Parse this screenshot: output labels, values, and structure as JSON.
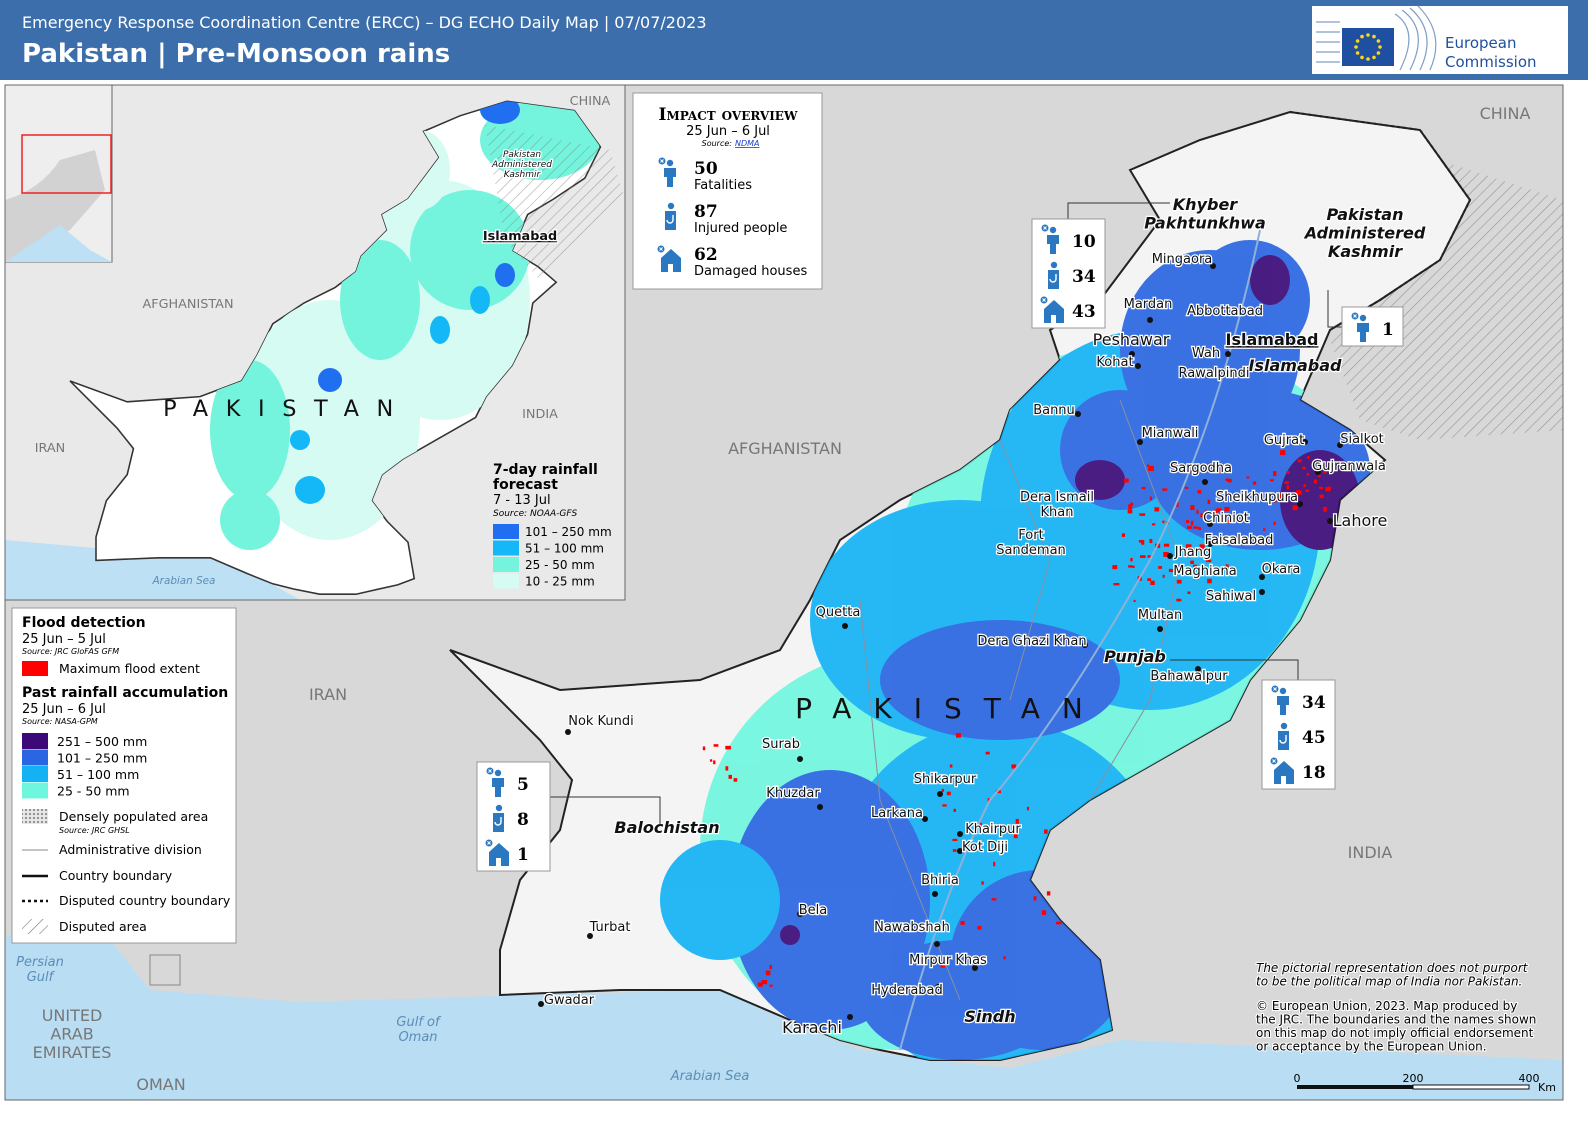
{
  "header": {
    "subtitle": "Emergency Response Coordination Centre (ERCC) – DG ECHO Daily Map | 07/07/2023",
    "title": "Pakistan | Pre-Monsoon rains",
    "logo": [
      "European",
      "Commission"
    ]
  },
  "impact": {
    "title": "Impact overview",
    "period": "25 Jun – 6 Jul",
    "source_label": "Source:",
    "source": "NDMA",
    "items": [
      {
        "value": 50,
        "label": "Fatalities"
      },
      {
        "value": 87,
        "label": "Injured people"
      },
      {
        "value": 62,
        "label": "Damaged houses"
      }
    ]
  },
  "region_boxes": [
    {
      "values": [
        10,
        34,
        43
      ]
    },
    {
      "values": [
        1
      ]
    },
    {
      "values": [
        34,
        45,
        18
      ]
    },
    {
      "values": [
        5,
        8,
        1
      ]
    }
  ],
  "places": [
    [
      "CHINA"
    ],
    [
      "AFGHANISTAN"
    ],
    [
      "IRAN"
    ],
    [
      "INDIA"
    ],
    [
      "OMAN"
    ],
    [
      "UNITED",
      "ARAB",
      "EMIRATES"
    ],
    [
      "Persian",
      "Gulf"
    ],
    [
      "Gulf of",
      "Oman"
    ],
    [
      "Arabian Sea"
    ],
    [
      "PAKISTAN"
    ],
    [
      "Khyber",
      "Pakhtunkhwa"
    ],
    [
      "Pakistan",
      "Administered",
      "Kashmir"
    ],
    [
      "Islamabad"
    ],
    [
      "Islamabad"
    ],
    [
      "Punjab"
    ],
    [
      "Balochistan"
    ],
    [
      "Sindh"
    ],
    [
      "Mingaora"
    ],
    [
      "Mardan"
    ],
    [
      "Abbottabad"
    ],
    [
      "Peshawar"
    ],
    [
      "Wah"
    ],
    [
      "Kohat"
    ],
    [
      "Rawalpindi"
    ],
    [
      "Bannu"
    ],
    [
      "Mianwali"
    ],
    [
      "Gujrat"
    ],
    [
      "Sialkot"
    ],
    [
      "Sargodha"
    ],
    [
      "Gujranwala"
    ],
    [
      "Dera Ismail",
      "Khan"
    ],
    [
      "Sheikhupura"
    ],
    [
      "Chiniot"
    ],
    [
      "Lahore"
    ],
    [
      "Fort",
      "Sandeman"
    ],
    [
      "Faisalabad"
    ],
    [
      "Jhang"
    ],
    [
      "Maghiana"
    ],
    [
      "Okara"
    ],
    [
      "Sahiwal"
    ],
    [
      "Quetta"
    ],
    [
      "Multan"
    ],
    [
      "Dera Ghazi Khan"
    ],
    [
      "Bahawalpur"
    ],
    [
      "Nok Kundi"
    ],
    [
      "Surab"
    ],
    [
      "Khuzdar"
    ],
    [
      "Shikarpur"
    ],
    [
      "Larkana"
    ],
    [
      "Khairpur"
    ],
    [
      "Kot Diji"
    ],
    [
      "Bhiria"
    ],
    [
      "Bela"
    ],
    [
      "Turbat"
    ],
    [
      "Nawabshah"
    ],
    [
      "Mirpur Khas"
    ],
    [
      "Hyderabad"
    ],
    [
      "Gwadar"
    ],
    [
      "Karachi"
    ]
  ],
  "inset": {
    "places": [
      [
        "CHINA"
      ],
      [
        "AFGHANISTAN"
      ],
      [
        "IRAN"
      ],
      [
        "INDIA"
      ],
      [
        "Arabian Sea"
      ],
      [
        "Islamabad"
      ],
      [
        "Pakistan",
        "Administered",
        "Kashmir"
      ],
      [
        "PAKISTAN"
      ]
    ],
    "legend": {
      "title": [
        "7-day rainfall",
        "forecast"
      ],
      "period": "7 - 13 Jul",
      "source": "Source: NOAA-GFS",
      "classes": [
        {
          "label": "101 – 250 mm",
          "color": "#1f6ff0"
        },
        {
          "label": "51 – 100 mm",
          "color": "#14b8f6"
        },
        {
          "label": "25 - 50 mm",
          "color": "#74f4dc"
        },
        {
          "label": "10 - 25 mm",
          "color": "#d6fbf2"
        }
      ]
    }
  },
  "legend": {
    "flood": {
      "title": "Flood detection",
      "period": "25 Jun – 5 Jul",
      "source": "Source: JRC GloFAS GFM",
      "items": [
        {
          "label": "Maximum flood extent",
          "color": "#ff0000"
        }
      ]
    },
    "rainfall": {
      "title": "Past rainfall accumulation",
      "period": "25 Jun – 6 Jul",
      "source": "Source: NASA-GPM",
      "classes": [
        {
          "label": "251 – 500 mm",
          "color": "#3b0a78"
        },
        {
          "label": "101 – 250 mm",
          "color": "#2a66e2"
        },
        {
          "label": "51 – 100 mm",
          "color": "#14b2f4"
        },
        {
          "label": "25 - 50 mm",
          "color": "#6ff6df"
        }
      ]
    },
    "other": [
      {
        "label": "Densely populated area",
        "source": "Source: JRC GHSL"
      },
      {
        "label": "Administrative division"
      },
      {
        "label": "Country boundary"
      },
      {
        "label": "Disputed country boundary"
      },
      {
        "label": "Disputed area"
      }
    ]
  },
  "disclaimer": [
    [
      "The pictorial representation does not purport",
      "to be the political map of India nor Pakistan."
    ],
    [
      "© European Union, 2023. Map produced by",
      "the JRC. The boundaries and the names shown",
      "on this map do not imply official endorsement",
      "or acceptance by the European Union."
    ]
  ],
  "scale": {
    "ticks": [
      "0",
      "200",
      "400"
    ],
    "unit": "Km"
  }
}
